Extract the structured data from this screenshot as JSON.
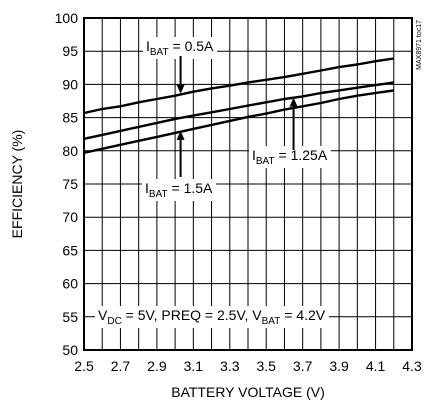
{
  "chart_data": {
    "type": "line",
    "xlabel": "BATTERY VOLTAGE (V)",
    "ylabel": "EFFICIENCY (%)",
    "xlim": [
      2.5,
      4.3
    ],
    "ylim": [
      50,
      100
    ],
    "x_ticks": [
      "2.5",
      "2.7",
      "2.9",
      "3.1",
      "3.3",
      "3.5",
      "3.7",
      "3.9",
      "4.1",
      "4.3"
    ],
    "y_ticks": [
      "50",
      "55",
      "60",
      "65",
      "70",
      "75",
      "80",
      "85",
      "90",
      "95",
      "100"
    ],
    "grid": true,
    "side_label": "MAX8971 toc17",
    "series": [
      {
        "name_main": "I",
        "name_sub": "BAT",
        "name_tail": " = 0.5A",
        "x": [
          2.5,
          2.6,
          2.7,
          2.8,
          2.9,
          3.0,
          3.1,
          3.2,
          3.3,
          3.4,
          3.5,
          3.6,
          3.7,
          3.8,
          3.9,
          4.0,
          4.1,
          4.2
        ],
        "y": [
          85.7,
          86.3,
          86.7,
          87.3,
          87.8,
          88.3,
          88.9,
          89.4,
          89.8,
          90.3,
          90.7,
          91.1,
          91.6,
          92.1,
          92.6,
          93.0,
          93.5,
          93.9
        ]
      },
      {
        "name_main": "I",
        "name_sub": "BAT",
        "name_tail": " = 1.25A",
        "x": [
          2.5,
          2.6,
          2.7,
          2.8,
          2.9,
          3.0,
          3.1,
          3.2,
          3.3,
          3.4,
          3.5,
          3.6,
          3.7,
          3.8,
          3.9,
          4.0,
          4.1,
          4.2
        ],
        "y": [
          81.8,
          82.4,
          83.0,
          83.6,
          84.2,
          84.8,
          85.3,
          85.8,
          86.3,
          86.8,
          87.3,
          87.8,
          88.2,
          88.7,
          89.1,
          89.5,
          89.9,
          90.3
        ]
      },
      {
        "name_main": "I",
        "name_sub": "BAT",
        "name_tail": " = 1.5A",
        "x": [
          2.5,
          2.6,
          2.7,
          2.8,
          2.9,
          3.0,
          3.1,
          3.2,
          3.3,
          3.4,
          3.5,
          3.6,
          3.7,
          3.8,
          3.9,
          4.0,
          4.1,
          4.2
        ],
        "y": [
          79.7,
          80.3,
          80.9,
          81.5,
          82.1,
          82.7,
          83.3,
          83.9,
          84.5,
          85.1,
          85.6,
          86.2,
          86.7,
          87.2,
          87.8,
          88.3,
          88.7,
          89.1
        ]
      }
    ],
    "conditions": {
      "p1": "V",
      "s1": "DC",
      "p2": " = 5V, PREQ = 2.5V, V",
      "s2": "BAT",
      "p3": " = 4.2V"
    }
  }
}
